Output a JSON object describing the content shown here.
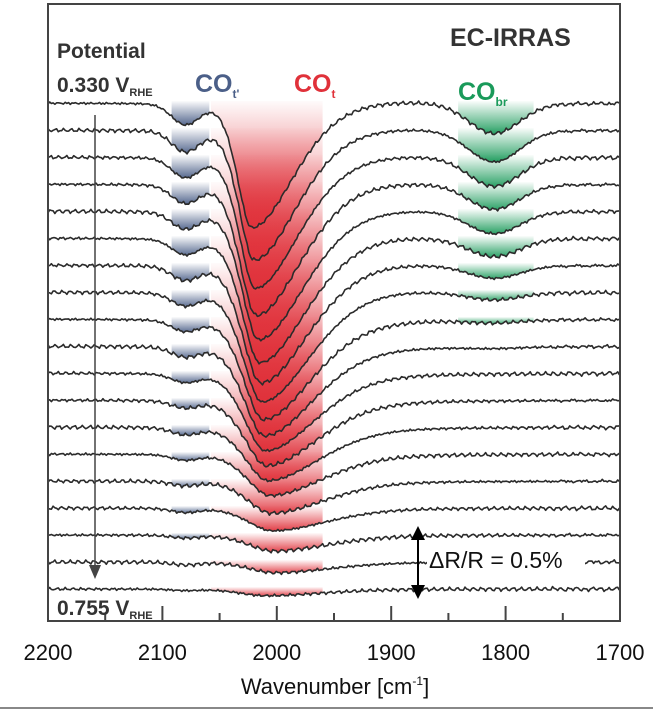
{
  "chart_data": {
    "type": "line",
    "title": "EC-IRRAS",
    "xlabel": "Wavenumber [cm-1]",
    "xlabel_main": "Wavenumber [cm",
    "xlabel_sup": "-1",
    "xlabel_end": "]",
    "xlim": [
      2200,
      1700
    ],
    "x_ticks": [
      2200,
      2100,
      2000,
      1900,
      1800,
      1700
    ],
    "x_tick_labels": [
      "2200",
      "2100",
      "2000",
      "1900",
      "1800",
      "1700"
    ],
    "x_minor_step": 50,
    "ylabel": "",
    "y_offset_per_trace_percent": 0.2,
    "potential_label": "Potential",
    "potential_start": {
      "value": "0.330 V",
      "sub": "RHE"
    },
    "potential_end": {
      "value": "0.755 V",
      "sub": "RHE"
    },
    "scale_bar": {
      "label": "ΔR/R = 0.5%",
      "value_percent": 0.5
    },
    "bands": [
      {
        "name": "COt'",
        "text": "CO",
        "sub": "t'",
        "color": "#4b5f88",
        "center": 2080,
        "range": [
          2092,
          2058
        ]
      },
      {
        "name": "COt",
        "text": "CO",
        "sub": "t",
        "color": "#e0313a",
        "range": [
          2058,
          1960
        ]
      },
      {
        "name": "CObr",
        "text": "CO",
        "sub": "br",
        "color": "#1a9a5a",
        "center": 1810,
        "range": [
          1842,
          1775
        ]
      }
    ],
    "trace_count": 19,
    "series": {
      "COt_center_cm": [
        2022,
        2020,
        2019,
        2018,
        2016,
        2015,
        2014,
        2013,
        2012,
        2011,
        2010,
        2009,
        2008,
        2006,
        2005,
        2004,
        2003,
        2002,
        2010
      ],
      "COt_depth_percent": [
        0.93,
        0.97,
        0.98,
        0.98,
        0.96,
        0.93,
        0.88,
        0.82,
        0.75,
        0.67,
        0.58,
        0.49,
        0.4,
        0.31,
        0.24,
        0.17,
        0.12,
        0.08,
        0.05
      ],
      "COtp_depth_percent": [
        0.15,
        0.15,
        0.14,
        0.13,
        0.12,
        0.11,
        0.1,
        0.09,
        0.08,
        0.07,
        0.06,
        0.05,
        0.05,
        0.04,
        0.03,
        0.03,
        0.02,
        0.02,
        0.01
      ],
      "CObr_depth_percent": [
        0.22,
        0.23,
        0.21,
        0.18,
        0.16,
        0.13,
        0.09,
        0.05,
        0.02,
        0.01,
        0,
        0,
        0,
        0,
        0,
        0,
        0,
        0,
        0
      ]
    }
  }
}
